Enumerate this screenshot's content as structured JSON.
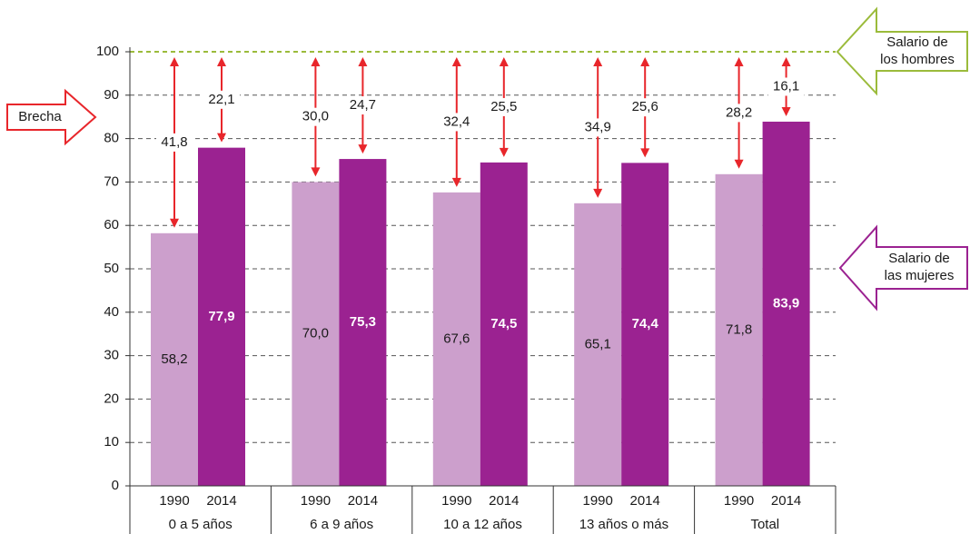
{
  "chart_data": {
    "type": "bar",
    "categories": [
      "0 a 5 años",
      "6 a 9 años",
      "10 a 12 años",
      "13 años o más",
      "Total"
    ],
    "series": [
      {
        "name": "1990",
        "color": "#cc9fcc",
        "values": [
          58.2,
          70.0,
          67.6,
          65.1,
          71.8
        ],
        "value_labels": [
          "58,2",
          "70,0",
          "67,6",
          "65,1",
          "71,8"
        ],
        "gap_values": [
          41.8,
          30.0,
          32.4,
          34.9,
          28.2
        ],
        "gap_labels": [
          "41,8",
          "30,0",
          "32,4",
          "34,9",
          "28,2"
        ]
      },
      {
        "name": "2014",
        "color": "#9b2291",
        "values": [
          77.9,
          75.3,
          74.5,
          74.4,
          83.9
        ],
        "value_labels": [
          "77,9",
          "75,3",
          "74,5",
          "74,4",
          "83,9"
        ],
        "gap_values": [
          22.1,
          24.7,
          25.5,
          25.6,
          16.1
        ],
        "gap_labels": [
          "22,1",
          "24,7",
          "25,5",
          "25,6",
          "16,1"
        ]
      }
    ],
    "ylim": [
      0,
      100
    ],
    "yticks": [
      0,
      10,
      20,
      30,
      40,
      50,
      60,
      70,
      80,
      90,
      100
    ],
    "grid": true,
    "annotations": {
      "gap": [
        "Brecha"
      ],
      "men": [
        "Salario de",
        "los hombres"
      ],
      "women": [
        "Salario de",
        "las mujeres"
      ]
    }
  }
}
